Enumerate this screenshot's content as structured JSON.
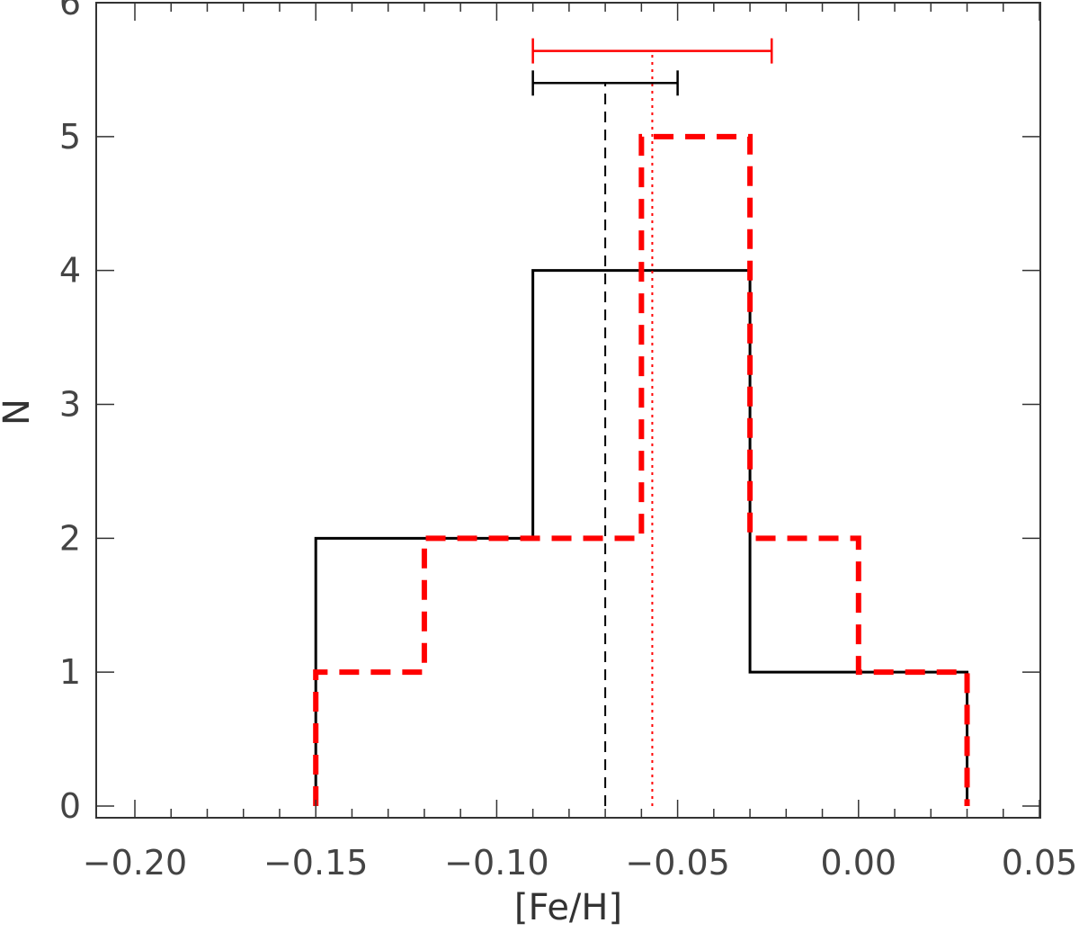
{
  "chart_data": {
    "type": "histogram",
    "xlabel": "[Fe/H]",
    "ylabel": "N",
    "xlim": [
      -0.2,
      0.05
    ],
    "ylim": [
      0,
      6
    ],
    "x_ticks": [
      -0.2,
      -0.15,
      -0.1,
      -0.05,
      0.0,
      0.05
    ],
    "x_tick_labels": [
      "−0.20",
      "−0.15",
      "−0.10",
      "−0.05",
      "0.00",
      "0.05"
    ],
    "y_ticks": [
      0,
      1,
      2,
      3,
      4,
      5,
      6
    ],
    "y_tick_labels": [
      "0",
      "1",
      "2",
      "3",
      "4",
      "5",
      "6"
    ],
    "grid": false,
    "series": [
      {
        "color": "#000000",
        "line_style": "solid",
        "bin_edges": [
          -0.15,
          -0.09,
          -0.03,
          0.03
        ],
        "counts": [
          2,
          4,
          1
        ],
        "mean": -0.07,
        "error_range": [
          -0.09,
          -0.05
        ],
        "error_bar_level": 5.4
      },
      {
        "color": "#ff0000",
        "line_style": "dashed",
        "bin_edges": [
          -0.15,
          -0.12,
          -0.06,
          -0.03,
          0.0,
          0.03
        ],
        "counts": [
          1,
          2,
          5,
          2,
          1
        ],
        "mean": -0.057,
        "error_range": [
          -0.09,
          -0.024
        ],
        "error_bar_level": 5.64
      }
    ]
  }
}
